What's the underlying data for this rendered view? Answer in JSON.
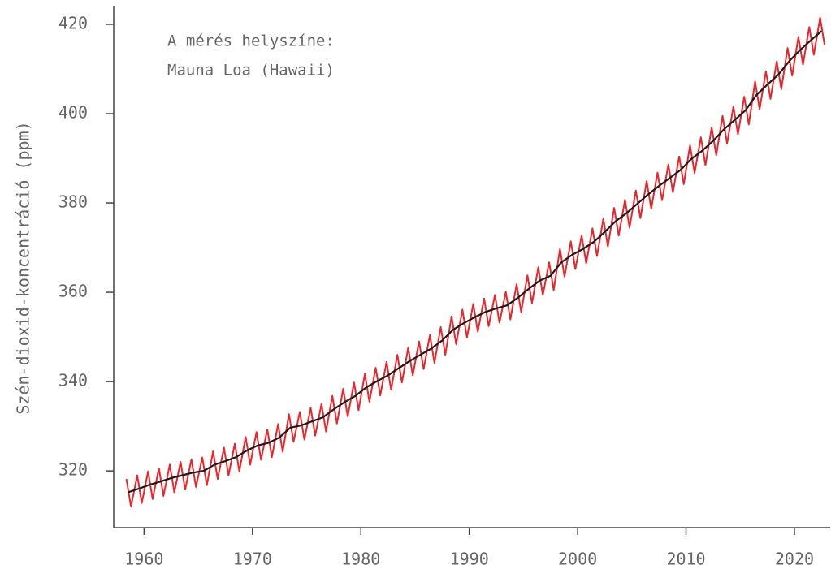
{
  "chart_data": {
    "type": "line",
    "ylabel": "Szén-dioxid-koncentráció (ppm)",
    "annotation": [
      "A mérés helyszíne:",
      "Mauna Loa (Hawaii)"
    ],
    "xlim": [
      1957.2,
      2023.3
    ],
    "ylim": [
      307.3,
      424
    ],
    "xticks": [
      1960,
      1970,
      1980,
      1990,
      2000,
      2010,
      2020
    ],
    "yticks": [
      320,
      340,
      360,
      380,
      400,
      420
    ],
    "grid": false,
    "series": [
      {
        "color": "#e8262b",
        "x": [
          1958.37,
          1958.79,
          1959.37,
          1959.79,
          1960.37,
          1960.79,
          1961.37,
          1961.79,
          1962.37,
          1962.79,
          1963.37,
          1963.79,
          1964.37,
          1964.79,
          1965.37,
          1965.79,
          1966.37,
          1966.79,
          1967.37,
          1967.79,
          1968.37,
          1968.79,
          1969.37,
          1969.79,
          1970.37,
          1970.79,
          1971.37,
          1971.79,
          1972.37,
          1972.79,
          1973.37,
          1973.79,
          1974.37,
          1974.79,
          1975.37,
          1975.79,
          1976.37,
          1976.79,
          1977.37,
          1977.79,
          1978.37,
          1978.79,
          1979.37,
          1979.79,
          1980.37,
          1980.79,
          1981.37,
          1981.79,
          1982.37,
          1982.79,
          1983.37,
          1983.79,
          1984.37,
          1984.79,
          1985.37,
          1985.79,
          1986.37,
          1986.79,
          1987.37,
          1987.79,
          1988.37,
          1988.79,
          1989.37,
          1989.79,
          1990.37,
          1990.79,
          1991.37,
          1991.79,
          1992.37,
          1992.79,
          1993.37,
          1993.79,
          1994.37,
          1994.79,
          1995.37,
          1995.79,
          1996.37,
          1996.79,
          1997.37,
          1997.79,
          1998.37,
          1998.79,
          1999.37,
          1999.79,
          2000.37,
          2000.79,
          2001.37,
          2001.79,
          2002.37,
          2002.79,
          2003.37,
          2003.79,
          2004.37,
          2004.79,
          2005.37,
          2005.79,
          2006.37,
          2006.79,
          2007.37,
          2007.79,
          2008.37,
          2008.79,
          2009.37,
          2009.79,
          2010.37,
          2010.79,
          2011.37,
          2011.79,
          2012.37,
          2012.79,
          2013.37,
          2013.79,
          2014.37,
          2014.79,
          2015.37,
          2015.79,
          2016.37,
          2016.79,
          2017.37,
          2017.79,
          2018.37,
          2018.79,
          2019.37,
          2019.79,
          2020.37,
          2020.79,
          2021.37,
          2021.79,
          2022.37,
          2022.79
        ],
        "values": [
          318.2,
          312.0,
          319.0,
          312.8,
          319.9,
          313.7,
          320.6,
          314.4,
          321.4,
          315.2,
          322.0,
          315.8,
          322.6,
          316.4,
          323.0,
          316.8,
          324.4,
          318.2,
          325.2,
          319.0,
          326.1,
          319.9,
          327.6,
          321.4,
          328.7,
          322.5,
          329.3,
          323.1,
          330.5,
          324.3,
          332.7,
          326.5,
          333.2,
          327.0,
          334.1,
          327.9,
          335.0,
          328.8,
          336.8,
          330.6,
          338.4,
          332.2,
          339.8,
          333.6,
          341.7,
          335.5,
          343.1,
          336.9,
          344.4,
          338.2,
          346.0,
          339.8,
          347.6,
          341.4,
          349.0,
          342.8,
          350.4,
          344.2,
          352.2,
          346.0,
          354.6,
          348.4,
          356.1,
          349.9,
          357.4,
          351.2,
          358.6,
          352.4,
          359.4,
          353.2,
          360.1,
          353.9,
          361.8,
          355.6,
          363.8,
          357.6,
          365.6,
          359.4,
          366.7,
          360.5,
          369.7,
          363.5,
          371.4,
          365.2,
          372.7,
          366.5,
          374.3,
          368.1,
          376.5,
          370.3,
          378.9,
          372.7,
          380.7,
          374.5,
          382.8,
          376.6,
          384.9,
          378.7,
          386.8,
          380.6,
          388.6,
          382.4,
          390.4,
          384.2,
          392.9,
          386.7,
          394.7,
          388.5,
          396.9,
          390.7,
          399.5,
          393.3,
          401.6,
          395.4,
          403.8,
          397.6,
          407.2,
          401.0,
          409.5,
          403.3,
          411.7,
          405.5,
          414.7,
          408.5,
          417.2,
          411.0,
          419.4,
          413.2,
          421.5,
          415.3
        ]
      },
      {
        "color": "#1a1a1a",
        "x": [
          1958.5,
          1959.5,
          1960.5,
          1961.5,
          1962.5,
          1963.5,
          1964.5,
          1965.5,
          1966.5,
          1967.5,
          1968.5,
          1969.5,
          1970.5,
          1971.5,
          1972.5,
          1973.5,
          1974.5,
          1975.5,
          1976.5,
          1977.5,
          1978.5,
          1979.5,
          1980.5,
          1981.5,
          1982.5,
          1983.5,
          1984.5,
          1985.5,
          1986.5,
          1987.5,
          1988.5,
          1989.5,
          1990.5,
          1991.5,
          1992.5,
          1993.5,
          1994.5,
          1995.5,
          1996.5,
          1997.5,
          1998.5,
          1999.5,
          2000.5,
          2001.5,
          2002.5,
          2003.5,
          2004.5,
          2005.5,
          2006.5,
          2007.5,
          2008.5,
          2009.5,
          2010.5,
          2011.5,
          2012.5,
          2013.5,
          2014.5,
          2015.5,
          2016.5,
          2017.5,
          2018.5,
          2019.5,
          2020.5,
          2021.5,
          2022.5
        ],
        "values": [
          315.2,
          316.0,
          316.9,
          317.6,
          318.4,
          319.0,
          319.6,
          320.0,
          321.4,
          322.2,
          323.1,
          324.6,
          325.7,
          326.3,
          327.5,
          329.7,
          330.2,
          331.1,
          332.0,
          333.8,
          335.4,
          336.8,
          338.7,
          340.1,
          341.4,
          343.0,
          344.6,
          346.0,
          347.4,
          349.2,
          351.6,
          353.1,
          354.4,
          355.6,
          356.4,
          357.1,
          358.8,
          360.8,
          362.6,
          363.7,
          366.7,
          368.4,
          369.7,
          371.3,
          373.5,
          375.9,
          377.7,
          379.8,
          381.9,
          383.8,
          385.6,
          387.4,
          389.9,
          391.7,
          393.9,
          396.5,
          398.6,
          400.8,
          404.2,
          406.5,
          408.7,
          411.7,
          414.2,
          416.4,
          418.5
        ]
      }
    ]
  }
}
